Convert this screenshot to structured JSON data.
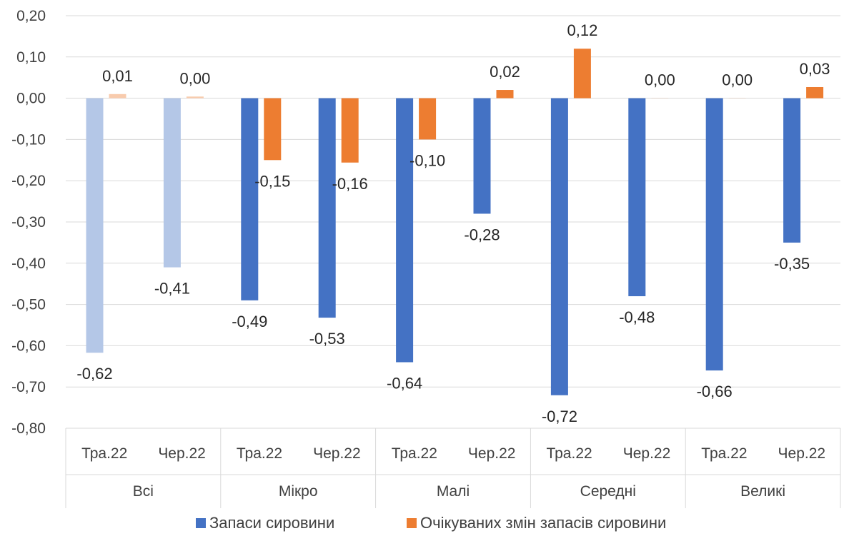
{
  "chart_data": {
    "type": "bar",
    "y_tick_labels": [
      "0,20",
      "0,10",
      "0,00",
      "-0,10",
      "-0,20",
      "-0,30",
      "-0,40",
      "-0,50",
      "-0,60",
      "-0,70",
      "-0,80"
    ],
    "ylim": [
      -0.8,
      0.2
    ],
    "grid": true,
    "groups": [
      {
        "label": "Всі",
        "categories": [
          "Тра.22",
          "Чер.22"
        ]
      },
      {
        "label": "Мікро",
        "categories": [
          "Тра.22",
          "Чер.22"
        ]
      },
      {
        "label": "Малі",
        "categories": [
          "Тра.22",
          "Чер.22"
        ]
      },
      {
        "label": "Середні",
        "categories": [
          "Тра.22",
          "Чер.22"
        ]
      },
      {
        "label": "Великі",
        "categories": [
          "Тра.22",
          "Чер.22"
        ]
      }
    ],
    "series": [
      {
        "name": "Запаси сировини",
        "color": "#4472C4",
        "faded_color": "#B4C7E7",
        "values": [
          -0.617,
          -0.41,
          -0.49,
          -0.532,
          -0.64,
          -0.28,
          -0.72,
          -0.48,
          -0.66,
          -0.35
        ],
        "labels": [
          "-0,62",
          "-0,41",
          "-0,49",
          "-0,53",
          "-0,64",
          "-0,28",
          "-0,72",
          "-0,48",
          "-0,66",
          "-0,35"
        ]
      },
      {
        "name": "Очікуваних змін запасів сировини",
        "color": "#ED7D31",
        "faded_color": "#F8CBAD",
        "values": [
          0.01,
          0.004,
          -0.15,
          -0.156,
          -0.1,
          0.02,
          0.12,
          0.0,
          0.0,
          0.027
        ],
        "labels": [
          "0,01",
          "0,00",
          "-0,15",
          "-0,16",
          "-0,10",
          "0,02",
          "0,12",
          "0,00",
          "0,00",
          "0,03"
        ]
      }
    ],
    "faded_group": "Всі",
    "legend": {
      "position": "bottom"
    }
  }
}
